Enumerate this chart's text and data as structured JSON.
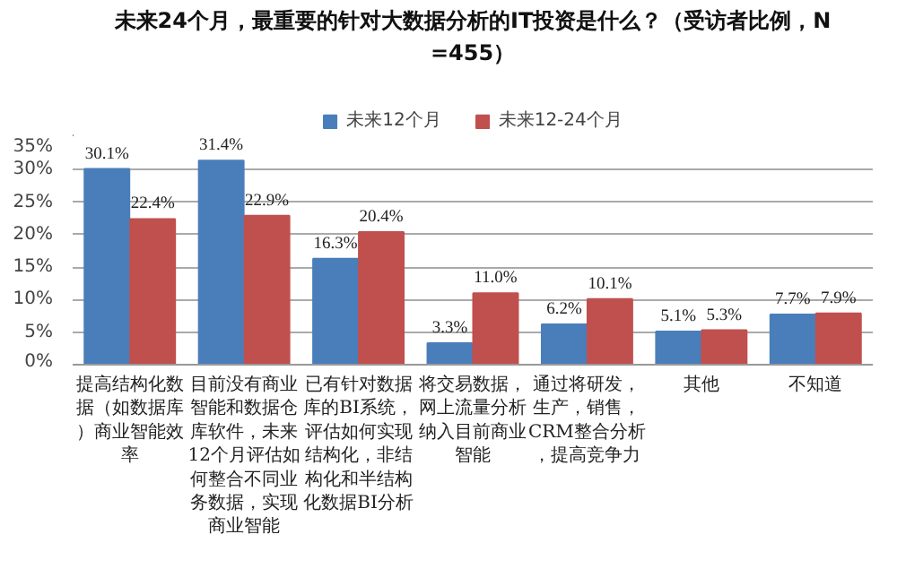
{
  "chart_data": {
    "type": "bar",
    "title": "未来24个月，最重要的针对大数据分析的IT投资是什么？（受访者比例，N=455）",
    "categories": [
      "提高结构化数据（如数据库）商业智能效率",
      "目前没有商业智能和数据仓库软件，未来12个月评估如何整合不同业务数据，实现商业智能",
      "已有针对数据库的BI系统，评估如何实现结构化，非结构化和半结构化数据BI分析",
      "将交易数据，网上流量分析纳入目前商业智能",
      "通过将研发，生产，销售，CRM整合分析，提高竞争力",
      "其他",
      "不知道"
    ],
    "series": [
      {
        "name": "未来12个月",
        "color": "#4a7ebb",
        "values": [
          30.1,
          31.4,
          16.3,
          3.3,
          6.2,
          5.1,
          7.7
        ],
        "value_labels": [
          "30.1%",
          "31.4%",
          "16.3%",
          "3.3%",
          "6.2%",
          "5.1%",
          "7.7%"
        ]
      },
      {
        "name": "未来12-24个月",
        "color": "#c0504d",
        "values": [
          22.4,
          22.9,
          20.4,
          11.0,
          10.1,
          5.3,
          7.9
        ],
        "value_labels": [
          "22.4%",
          "22.9%",
          "20.4%",
          "11.0%",
          "10.1%",
          "5.3%",
          "7.9%"
        ]
      }
    ],
    "ylim": [
      0,
      35
    ],
    "yticks": [
      {
        "value": 0,
        "label": "0%"
      },
      {
        "value": 5,
        "label": "5%"
      },
      {
        "value": 10,
        "label": "10%"
      },
      {
        "value": 15,
        "label": "15%"
      },
      {
        "value": 20,
        "label": "20%"
      },
      {
        "value": 25,
        "label": "25%"
      },
      {
        "value": 30,
        "label": "30%"
      },
      {
        "value": 35,
        "label": "35%"
      }
    ],
    "grid": "y",
    "legend": "top"
  }
}
